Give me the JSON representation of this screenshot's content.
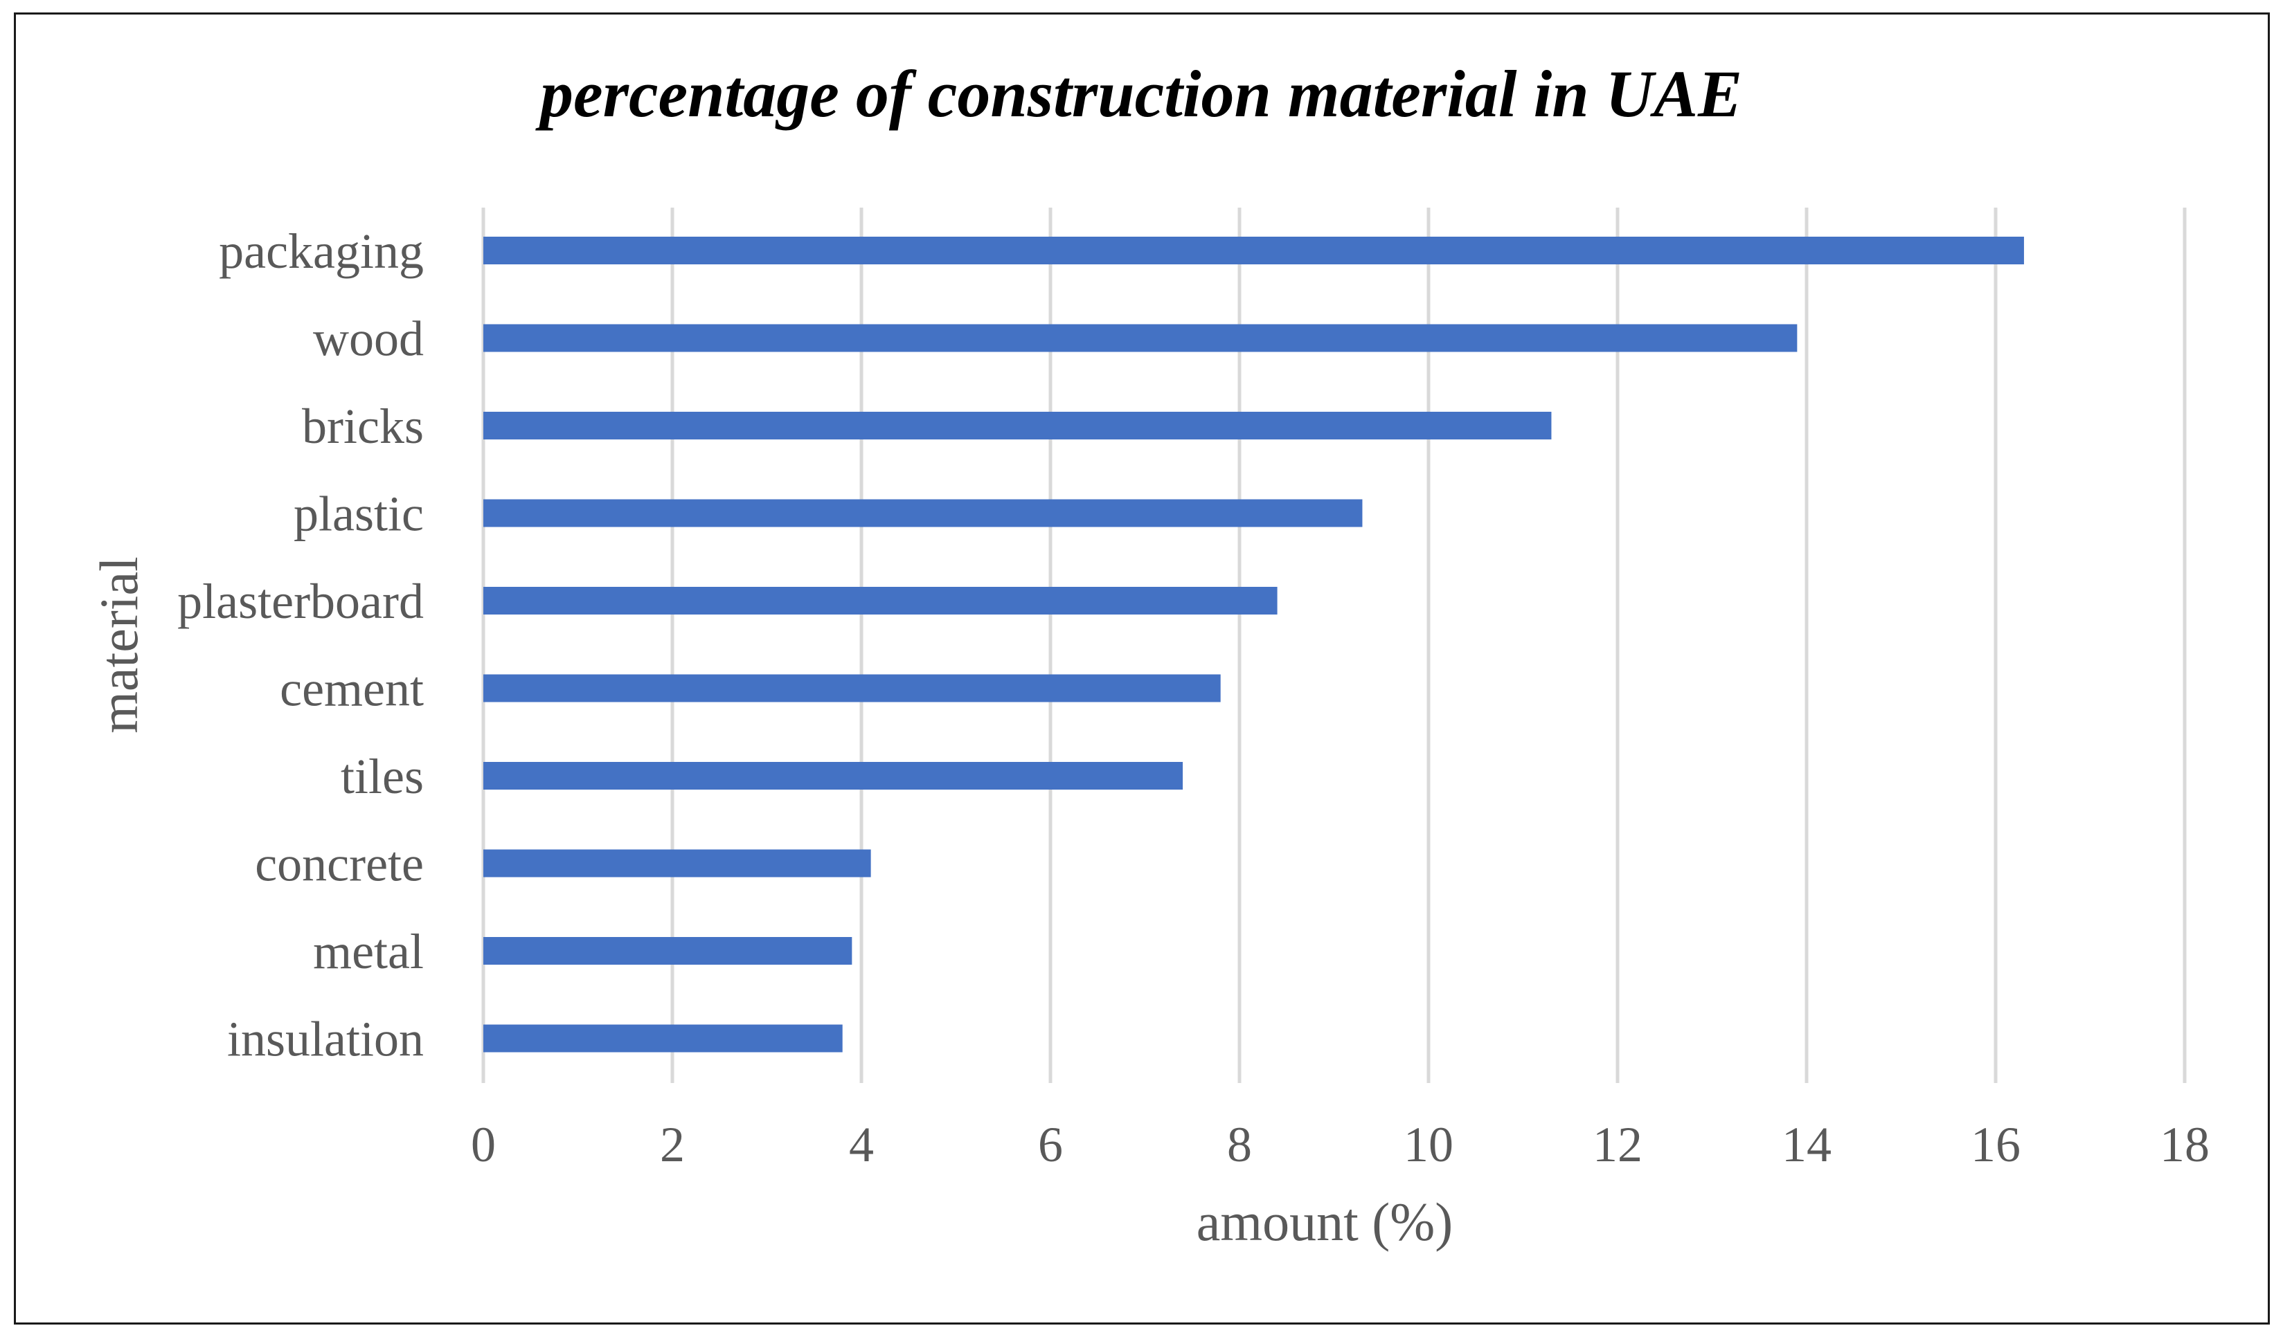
{
  "chart_data": {
    "type": "bar",
    "orientation": "horizontal",
    "title": "percentage of construction material in UAE",
    "xlabel": "amount (%)",
    "ylabel": "material",
    "categories": [
      "packaging",
      "wood",
      "bricks",
      "plastic",
      "plasterboard",
      "cement",
      "tiles",
      "concrete",
      "metal",
      "insulation"
    ],
    "values": [
      16.3,
      13.9,
      11.3,
      9.3,
      8.4,
      7.8,
      7.4,
      4.1,
      3.9,
      3.8
    ],
    "xlim": [
      0,
      18
    ],
    "xticks": [
      "0",
      "2",
      "4",
      "6",
      "8",
      "10",
      "12",
      "14",
      "16",
      "18"
    ],
    "grid": true,
    "bar_color": "#4472C4",
    "grid_color": "#D9D9D9"
  }
}
